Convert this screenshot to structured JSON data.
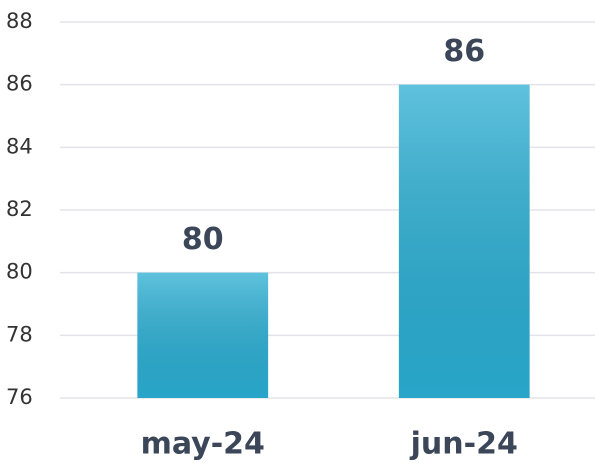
{
  "chart_data": {
    "type": "bar",
    "categories": [
      "may-24",
      "jun-24"
    ],
    "values": [
      80,
      86
    ],
    "color": "#2aaed3",
    "ylim": [
      76,
      88
    ],
    "yticks": [
      76,
      78,
      80,
      82,
      84,
      86,
      88
    ],
    "grid": true
  }
}
